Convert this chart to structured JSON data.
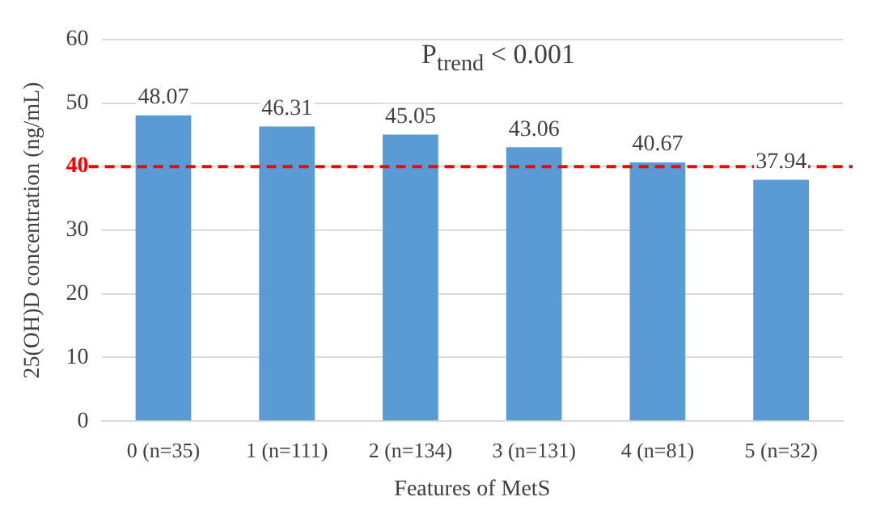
{
  "chart_data": {
    "type": "bar",
    "xlabel": "Features of MetS",
    "ylabel": "25(OH)D concentration (ng/mL)",
    "categories": [
      "0 (n=35)",
      "1 (n=111)",
      "2 (n=134)",
      "3 (n=131)",
      "4 (n=81)",
      "5 (n=32)"
    ],
    "values": [
      48.07,
      46.31,
      45.05,
      43.06,
      40.67,
      37.94
    ],
    "color": "#5b9bd5",
    "data_labels": true,
    "ylim": [
      0,
      60
    ],
    "yticks": [
      0,
      10,
      20,
      30,
      40,
      50,
      60
    ],
    "grid": "y",
    "ref_lines": [
      {
        "axis": "y",
        "value": 40,
        "color": "#ff0000",
        "line_style": "dashed"
      }
    ],
    "annotations": [
      "P$_{trend}$ < 0.001"
    ]
  }
}
